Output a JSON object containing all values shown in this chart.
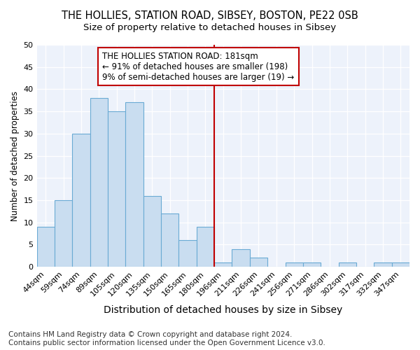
{
  "title": "THE HOLLIES, STATION ROAD, SIBSEY, BOSTON, PE22 0SB",
  "subtitle": "Size of property relative to detached houses in Sibsey",
  "xlabel": "Distribution of detached houses by size in Sibsey",
  "ylabel": "Number of detached properties",
  "categories": [
    "44sqm",
    "59sqm",
    "74sqm",
    "89sqm",
    "105sqm",
    "120sqm",
    "135sqm",
    "150sqm",
    "165sqm",
    "180sqm",
    "196sqm",
    "211sqm",
    "226sqm",
    "241sqm",
    "256sqm",
    "271sqm",
    "286sqm",
    "302sqm",
    "317sqm",
    "332sqm",
    "347sqm"
  ],
  "values": [
    9,
    15,
    30,
    38,
    35,
    37,
    16,
    12,
    6,
    9,
    1,
    4,
    2,
    0,
    1,
    1,
    0,
    1,
    0,
    1,
    1
  ],
  "bar_color": "#c9ddf0",
  "bar_edge_color": "#6aaad4",
  "vline_x": 9.5,
  "vline_color": "#c00000",
  "annotation_text": "THE HOLLIES STATION ROAD: 181sqm\n← 91% of detached houses are smaller (198)\n9% of semi-detached houses are larger (19) →",
  "annotation_box_color": "#ffffff",
  "annotation_box_edge": "#c00000",
  "ylim": [
    0,
    50
  ],
  "yticks": [
    0,
    5,
    10,
    15,
    20,
    25,
    30,
    35,
    40,
    45,
    50
  ],
  "background_color": "#edf2fb",
  "footer": "Contains HM Land Registry data © Crown copyright and database right 2024.\nContains public sector information licensed under the Open Government Licence v3.0.",
  "title_fontsize": 10.5,
  "subtitle_fontsize": 9.5,
  "xlabel_fontsize": 10,
  "ylabel_fontsize": 8.5,
  "tick_fontsize": 8,
  "annotation_fontsize": 8.5,
  "footer_fontsize": 7.5
}
